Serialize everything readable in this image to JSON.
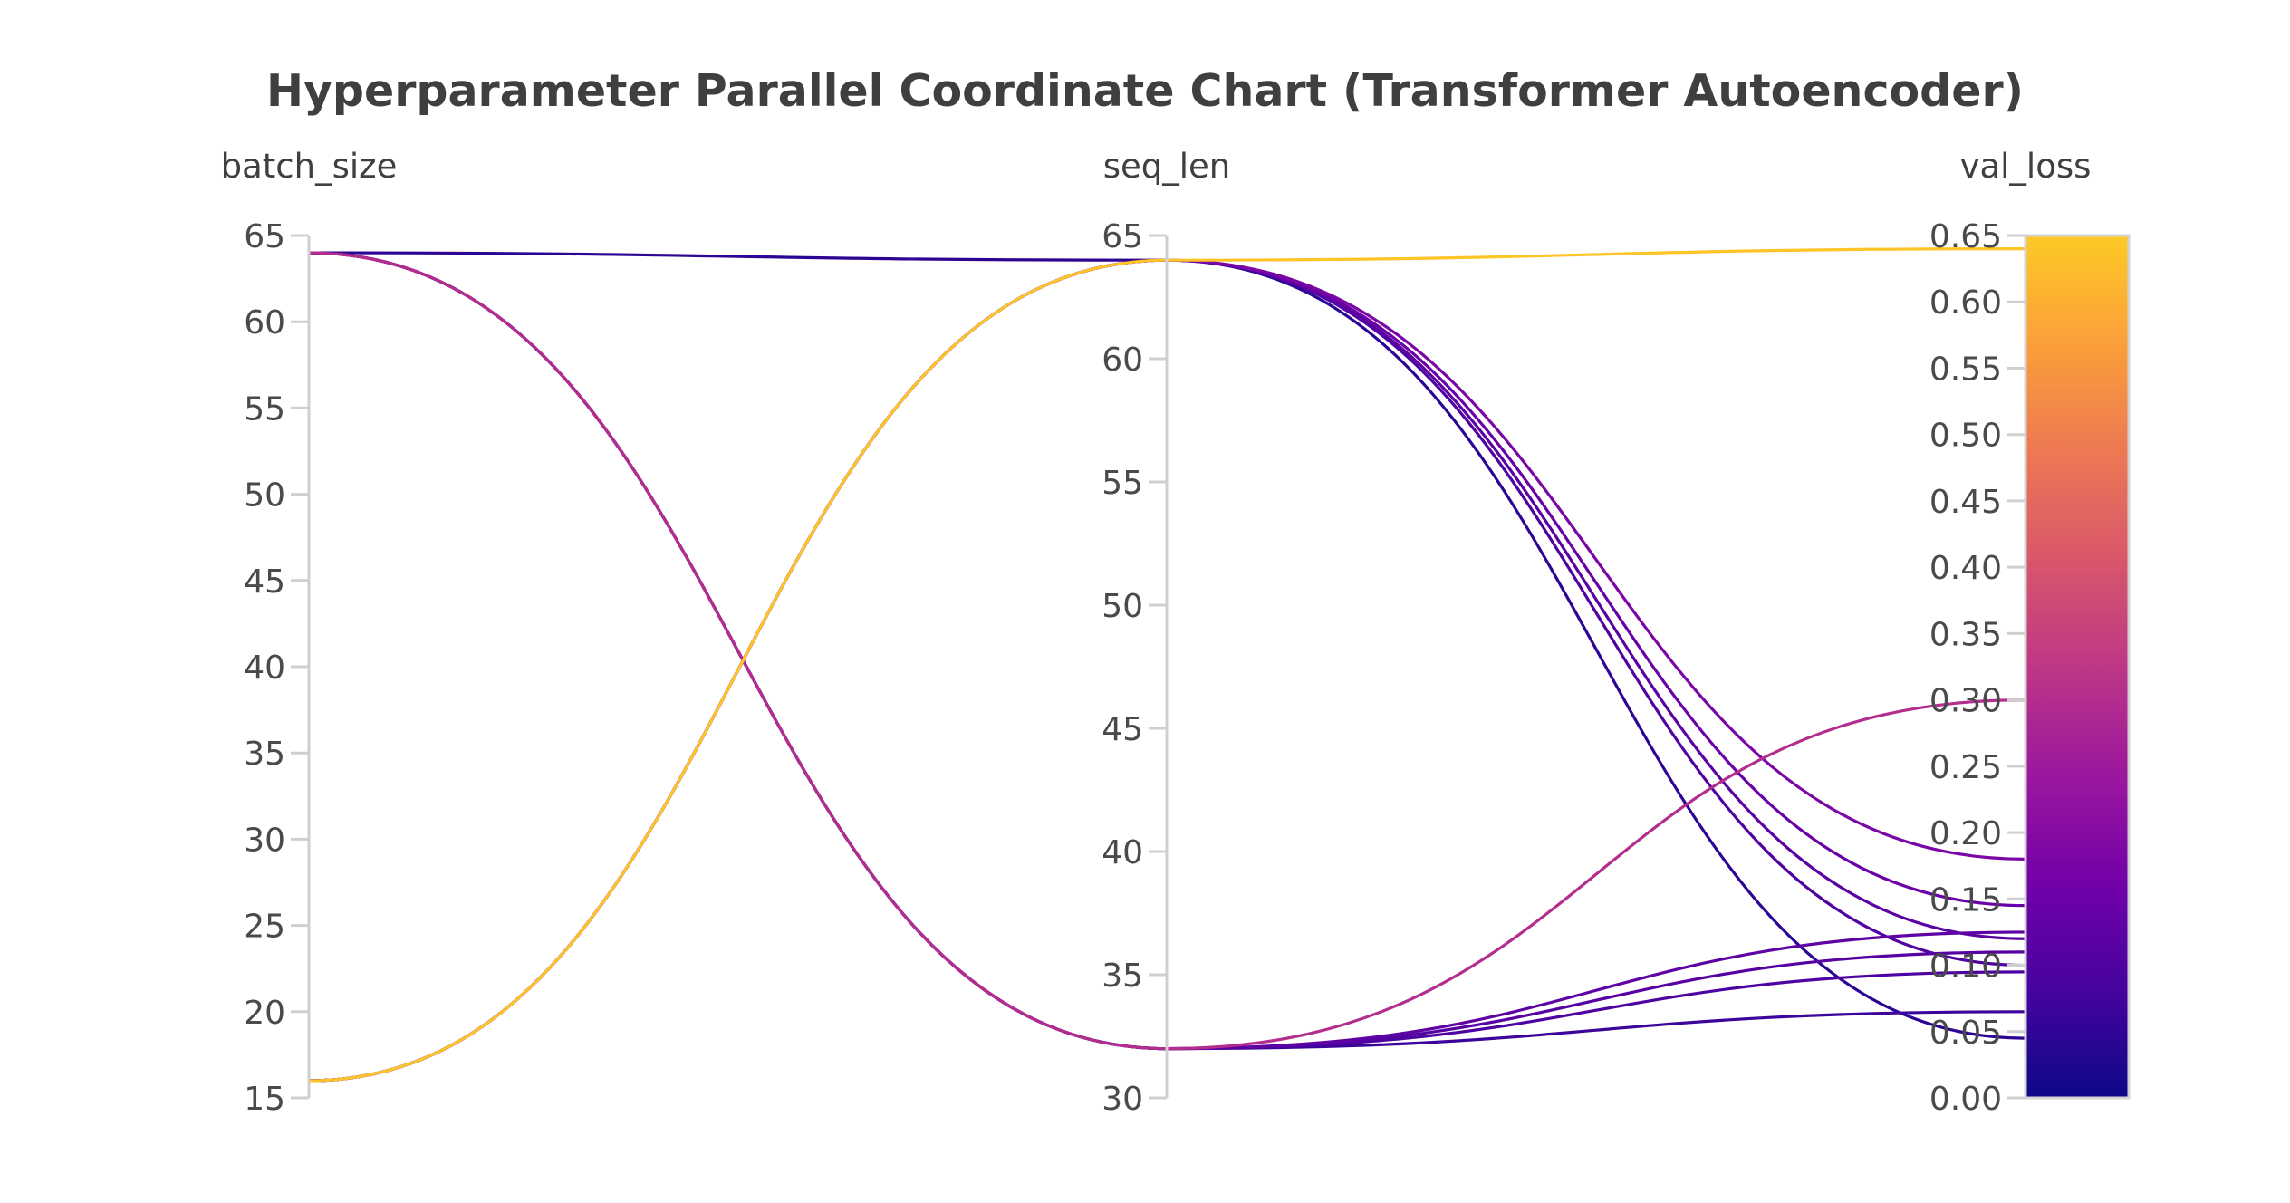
{
  "chart_data": {
    "type": "parallel_coordinates",
    "title": "Hyperparameter Parallel Coordinate Chart (Transformer Autoencoder)",
    "dimensions": [
      {
        "label": "batch_size",
        "range": [
          15,
          65
        ],
        "ticks": [
          "15",
          "20",
          "25",
          "30",
          "35",
          "40",
          "45",
          "50",
          "55",
          "60",
          "65"
        ]
      },
      {
        "label": "seq_len",
        "range": [
          30,
          65
        ],
        "ticks": [
          "30",
          "35",
          "40",
          "45",
          "50",
          "55",
          "60",
          "65"
        ]
      },
      {
        "label": "val_loss",
        "range": [
          0,
          0.65
        ],
        "ticks": [
          "0.00",
          "0.05",
          "0.10",
          "0.15",
          "0.20",
          "0.25",
          "0.30",
          "0.35",
          "0.40",
          "0.45",
          "0.50",
          "0.55",
          "0.60",
          "0.65"
        ]
      }
    ],
    "colorscale": {
      "name": "plasma",
      "range": [
        0,
        0.65
      ],
      "stops": [
        "#0d0887",
        "#46039f",
        "#7201a8",
        "#9c179e",
        "#bd3786",
        "#d8576b",
        "#ed7953",
        "#fb9f3a",
        "#fdca26"
      ]
    },
    "runs": [
      [
        16,
        64,
        0.64
      ],
      [
        16,
        64,
        0.18
      ],
      [
        16,
        64,
        0.145
      ],
      [
        16,
        64,
        0.12
      ],
      [
        16,
        64,
        0.1
      ],
      [
        64,
        64,
        0.045
      ],
      [
        64,
        32,
        0.3
      ],
      [
        64,
        32,
        0.125
      ],
      [
        64,
        32,
        0.11
      ],
      [
        64,
        32,
        0.095
      ],
      [
        64,
        32,
        0.065
      ]
    ]
  }
}
